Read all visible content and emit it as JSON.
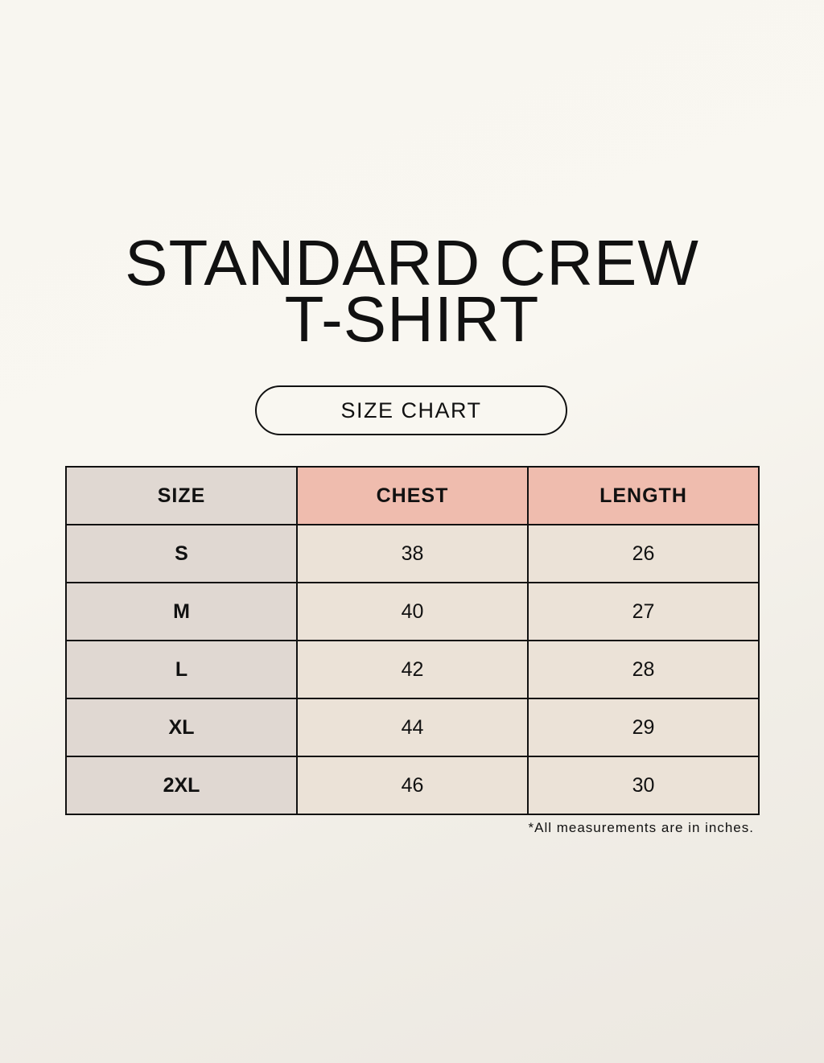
{
  "title": {
    "line1": "STANDARD CREW",
    "line2": "T-SHIRT"
  },
  "subtitle": "SIZE CHART",
  "table": {
    "headers": [
      "SIZE",
      "CHEST",
      "LENGTH"
    ],
    "rows": [
      [
        "S",
        "38",
        "26"
      ],
      [
        "M",
        "40",
        "27"
      ],
      [
        "L",
        "42",
        "28"
      ],
      [
        "XL",
        "44",
        "29"
      ],
      [
        "2XL",
        "46",
        "30"
      ]
    ]
  },
  "note": "*All measurements are in inches.",
  "colors": {
    "header_accent": "#efbcae",
    "size_column": "#e0d8d2",
    "cells": "#ebe2d7"
  }
}
